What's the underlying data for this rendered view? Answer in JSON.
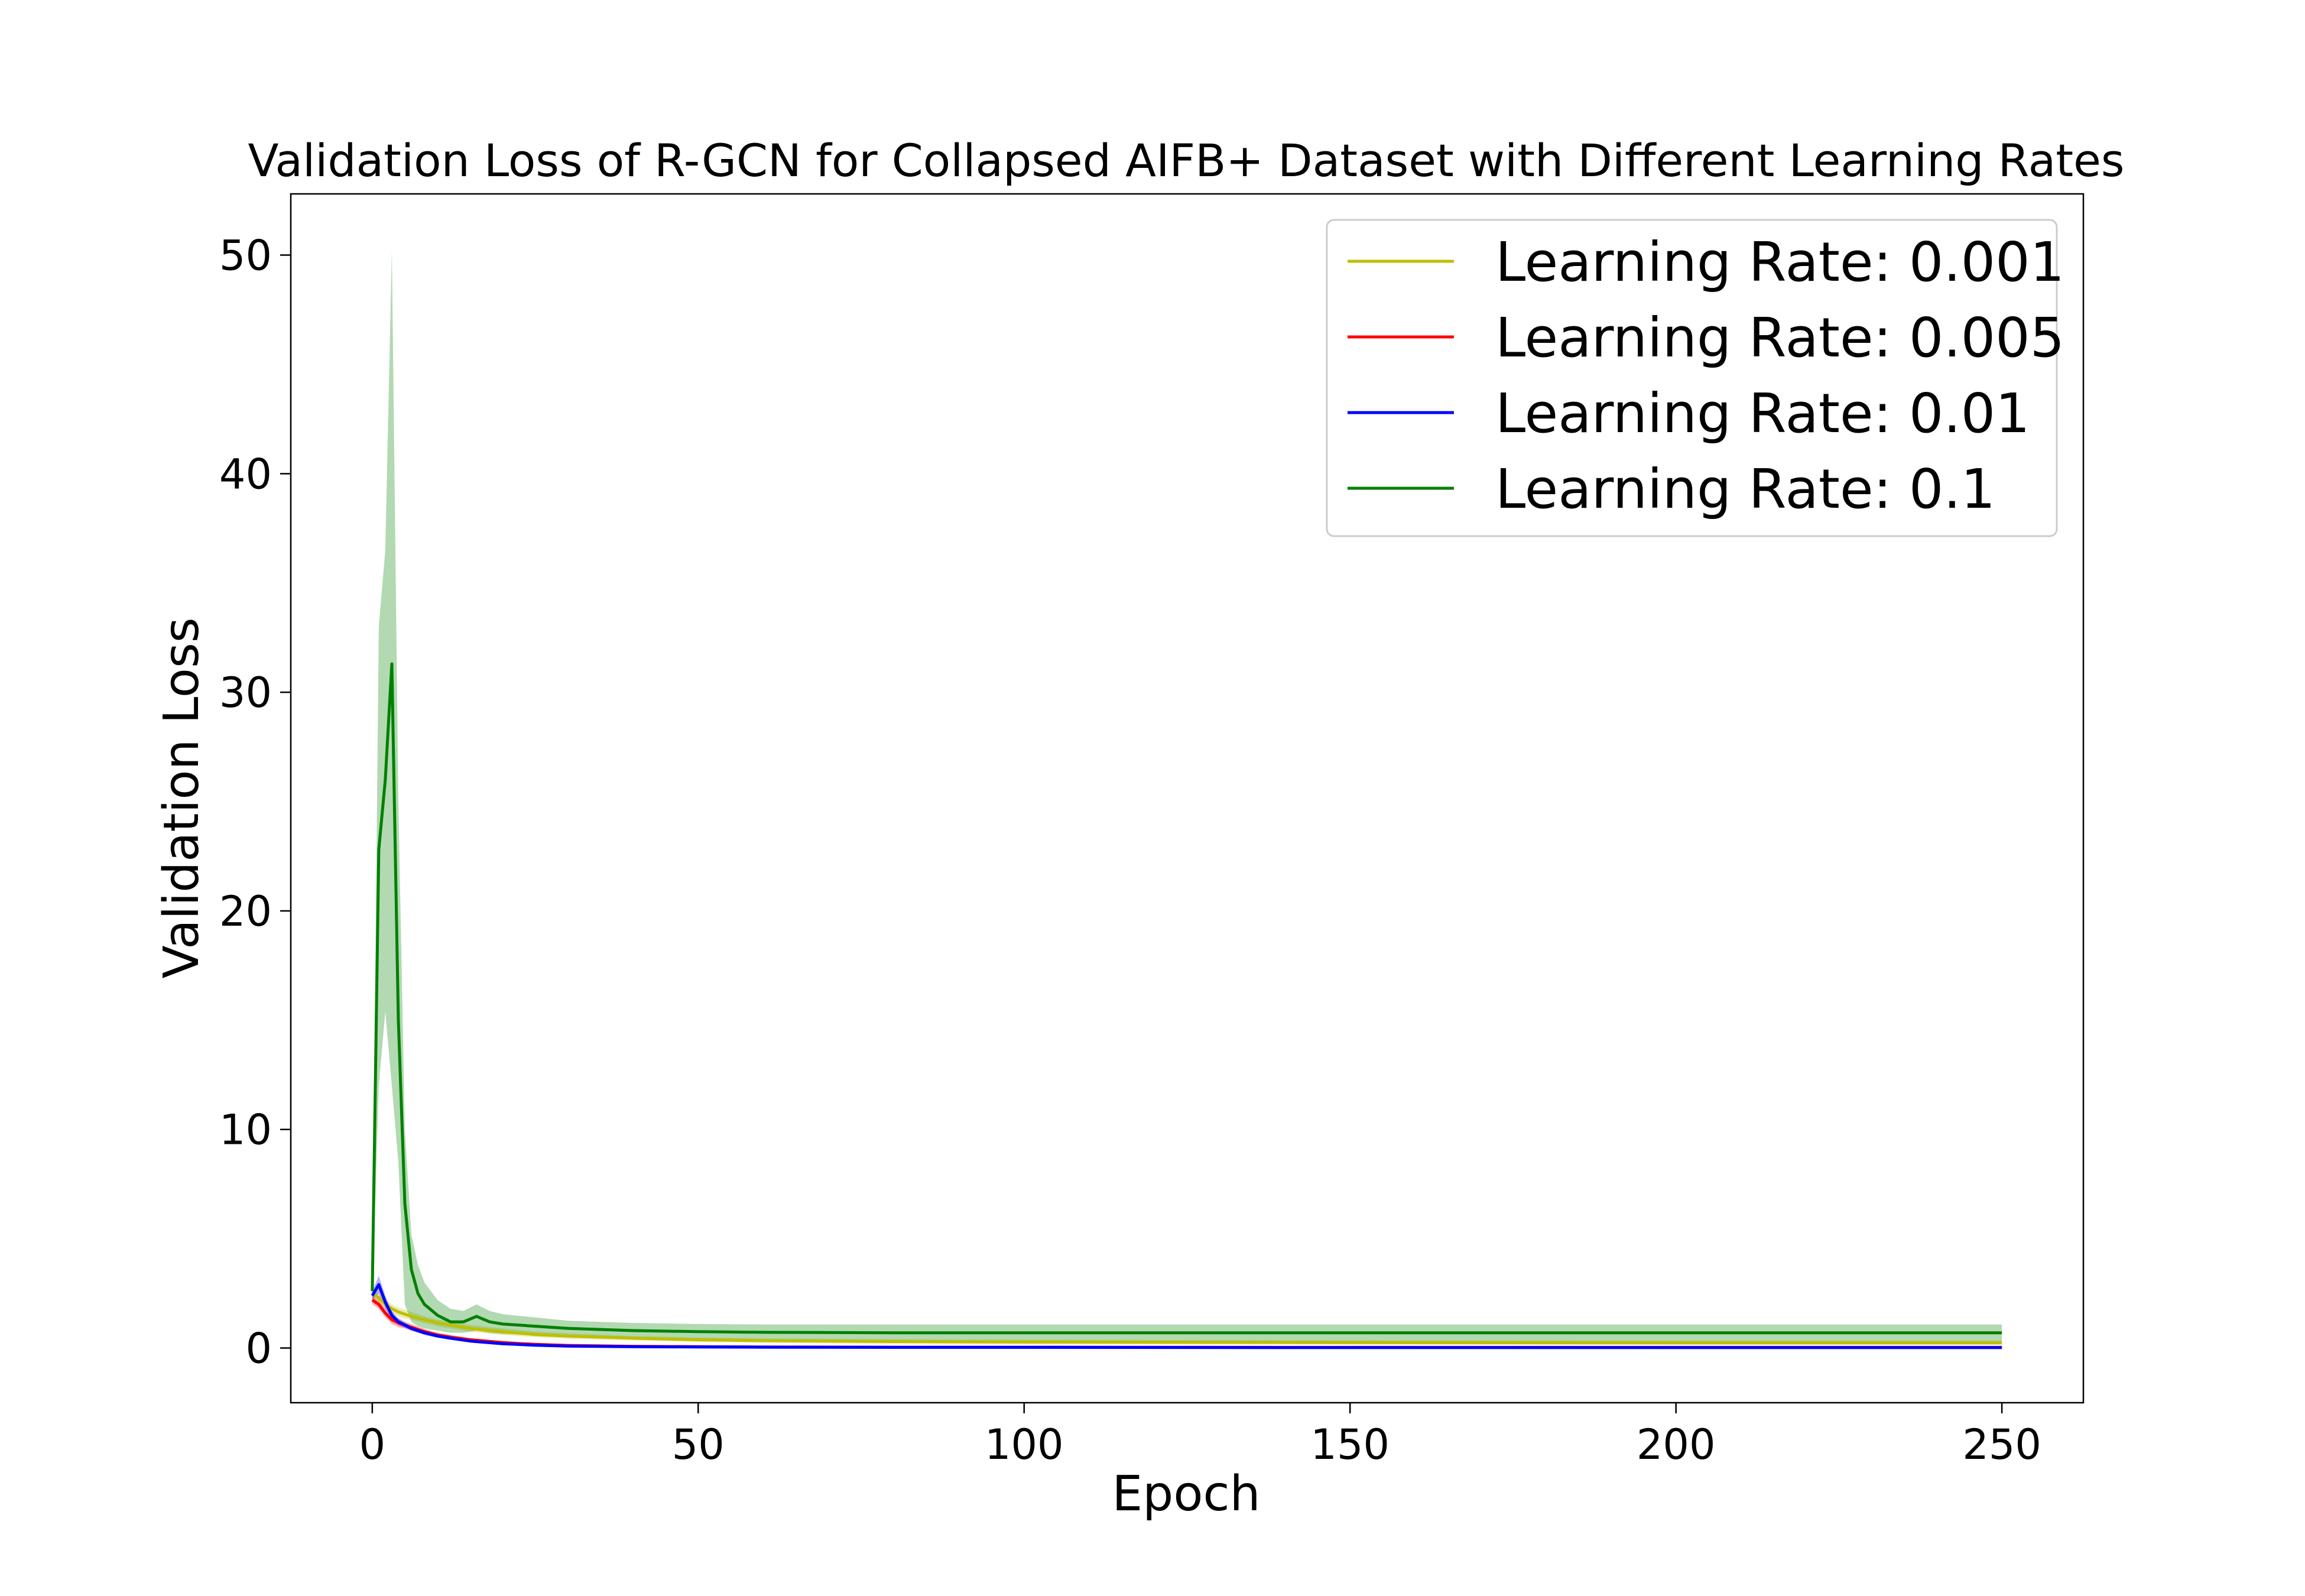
{
  "chart_data": {
    "type": "line",
    "title": "Validation Loss of R-GCN for Collapsed AIFB+ Dataset with Different Learning Rates",
    "xlabel": "Epoch",
    "ylabel": "Validation Loss",
    "xlim": [
      -12.5,
      262.5
    ],
    "ylim": [
      -2.5,
      52.8
    ],
    "xticks": [
      0,
      50,
      100,
      150,
      200,
      250
    ],
    "yticks": [
      0,
      10,
      20,
      30,
      40,
      50
    ],
    "grid": false,
    "legend_position": "top-right",
    "series": [
      {
        "name": "Learning Rate: 0.001",
        "color": "#bfbf00",
        "x": [
          0,
          1,
          2,
          3,
          4,
          5,
          6,
          8,
          10,
          12,
          15,
          20,
          25,
          30,
          40,
          50,
          60,
          80,
          100,
          150,
          200,
          250
        ],
        "values": [
          2.5,
          2.3,
          2.0,
          1.8,
          1.65,
          1.55,
          1.45,
          1.3,
          1.15,
          1.05,
          0.9,
          0.75,
          0.62,
          0.55,
          0.45,
          0.38,
          0.34,
          0.3,
          0.28,
          0.25,
          0.24,
          0.24
        ],
        "band_lower": [
          2.3,
          2.1,
          1.8,
          1.6,
          1.45,
          1.35,
          1.3,
          1.15,
          1.0,
          0.9,
          0.75,
          0.6,
          0.5,
          0.43,
          0.35,
          0.28,
          0.24,
          0.2,
          0.18,
          0.16,
          0.15,
          0.15
        ],
        "band_upper": [
          2.7,
          2.5,
          2.2,
          2.0,
          1.85,
          1.75,
          1.65,
          1.45,
          1.3,
          1.2,
          1.05,
          0.9,
          0.75,
          0.67,
          0.55,
          0.48,
          0.44,
          0.4,
          0.38,
          0.35,
          0.34,
          0.34
        ]
      },
      {
        "name": "Learning Rate: 0.005",
        "color": "#ff0000",
        "x": [
          0,
          1,
          2,
          3,
          4,
          5,
          6,
          8,
          10,
          12,
          15,
          20,
          25,
          30,
          40,
          50,
          60,
          80,
          100,
          150,
          200,
          250
        ],
        "values": [
          2.2,
          2.0,
          1.6,
          1.3,
          1.15,
          1.05,
          0.95,
          0.75,
          0.6,
          0.5,
          0.38,
          0.25,
          0.17,
          0.12,
          0.08,
          0.06,
          0.05,
          0.04,
          0.04,
          0.03,
          0.03,
          0.03
        ],
        "band_lower": [
          2.0,
          1.8,
          1.4,
          1.1,
          0.95,
          0.9,
          0.8,
          0.62,
          0.5,
          0.42,
          0.3,
          0.18,
          0.12,
          0.08,
          0.05,
          0.04,
          0.03,
          0.02,
          0.02,
          0.02,
          0.02,
          0.02
        ],
        "band_upper": [
          2.4,
          2.2,
          1.8,
          1.5,
          1.35,
          1.2,
          1.1,
          0.88,
          0.7,
          0.6,
          0.46,
          0.32,
          0.22,
          0.16,
          0.11,
          0.08,
          0.07,
          0.06,
          0.06,
          0.05,
          0.05,
          0.05
        ]
      },
      {
        "name": "Learning Rate: 0.01",
        "color": "#0000ff",
        "x": [
          0,
          1,
          2,
          3,
          4,
          5,
          6,
          8,
          10,
          12,
          15,
          20,
          25,
          30,
          40,
          50,
          60,
          80,
          100,
          150,
          200,
          250
        ],
        "values": [
          2.4,
          2.9,
          2.1,
          1.5,
          1.2,
          1.05,
          0.9,
          0.7,
          0.55,
          0.45,
          0.32,
          0.2,
          0.13,
          0.09,
          0.06,
          0.05,
          0.04,
          0.03,
          0.03,
          0.02,
          0.02,
          0.02
        ],
        "band_lower": [
          2.2,
          2.5,
          1.8,
          1.3,
          1.05,
          0.92,
          0.8,
          0.6,
          0.47,
          0.38,
          0.26,
          0.15,
          0.09,
          0.06,
          0.04,
          0.03,
          0.02,
          0.02,
          0.02,
          0.01,
          0.01,
          0.01
        ],
        "band_upper": [
          2.6,
          3.3,
          2.4,
          1.7,
          1.35,
          1.18,
          1.0,
          0.8,
          0.63,
          0.52,
          0.38,
          0.25,
          0.17,
          0.12,
          0.08,
          0.07,
          0.06,
          0.05,
          0.05,
          0.04,
          0.04,
          0.04
        ]
      },
      {
        "name": "Learning Rate: 0.1",
        "color": "#008000",
        "x": [
          0,
          1,
          2,
          3,
          4,
          5,
          6,
          7,
          8,
          10,
          12,
          14,
          16,
          18,
          20,
          25,
          30,
          35,
          40,
          50,
          60,
          80,
          100,
          150,
          200,
          250
        ],
        "values": [
          2.6,
          22.8,
          26.0,
          31.3,
          15.0,
          6.6,
          3.6,
          2.5,
          2.0,
          1.5,
          1.2,
          1.2,
          1.45,
          1.2,
          1.1,
          1.0,
          0.9,
          0.85,
          0.8,
          0.75,
          0.72,
          0.7,
          0.7,
          0.7,
          0.7,
          0.7
        ],
        "band_lower": [
          2.2,
          12.0,
          15.4,
          12.0,
          8.5,
          2.0,
          1.2,
          1.0,
          0.9,
          0.8,
          0.7,
          0.7,
          0.8,
          0.7,
          0.65,
          0.6,
          0.5,
          0.45,
          0.4,
          0.35,
          0.33,
          0.3,
          0.3,
          0.3,
          0.3,
          0.3
        ],
        "band_upper": [
          3.0,
          33.0,
          36.5,
          50.2,
          25.0,
          10.0,
          5.2,
          3.8,
          3.0,
          2.2,
          1.8,
          1.7,
          2.0,
          1.7,
          1.55,
          1.4,
          1.25,
          1.2,
          1.15,
          1.1,
          1.08,
          1.08,
          1.08,
          1.08,
          1.08,
          1.08
        ]
      }
    ]
  }
}
